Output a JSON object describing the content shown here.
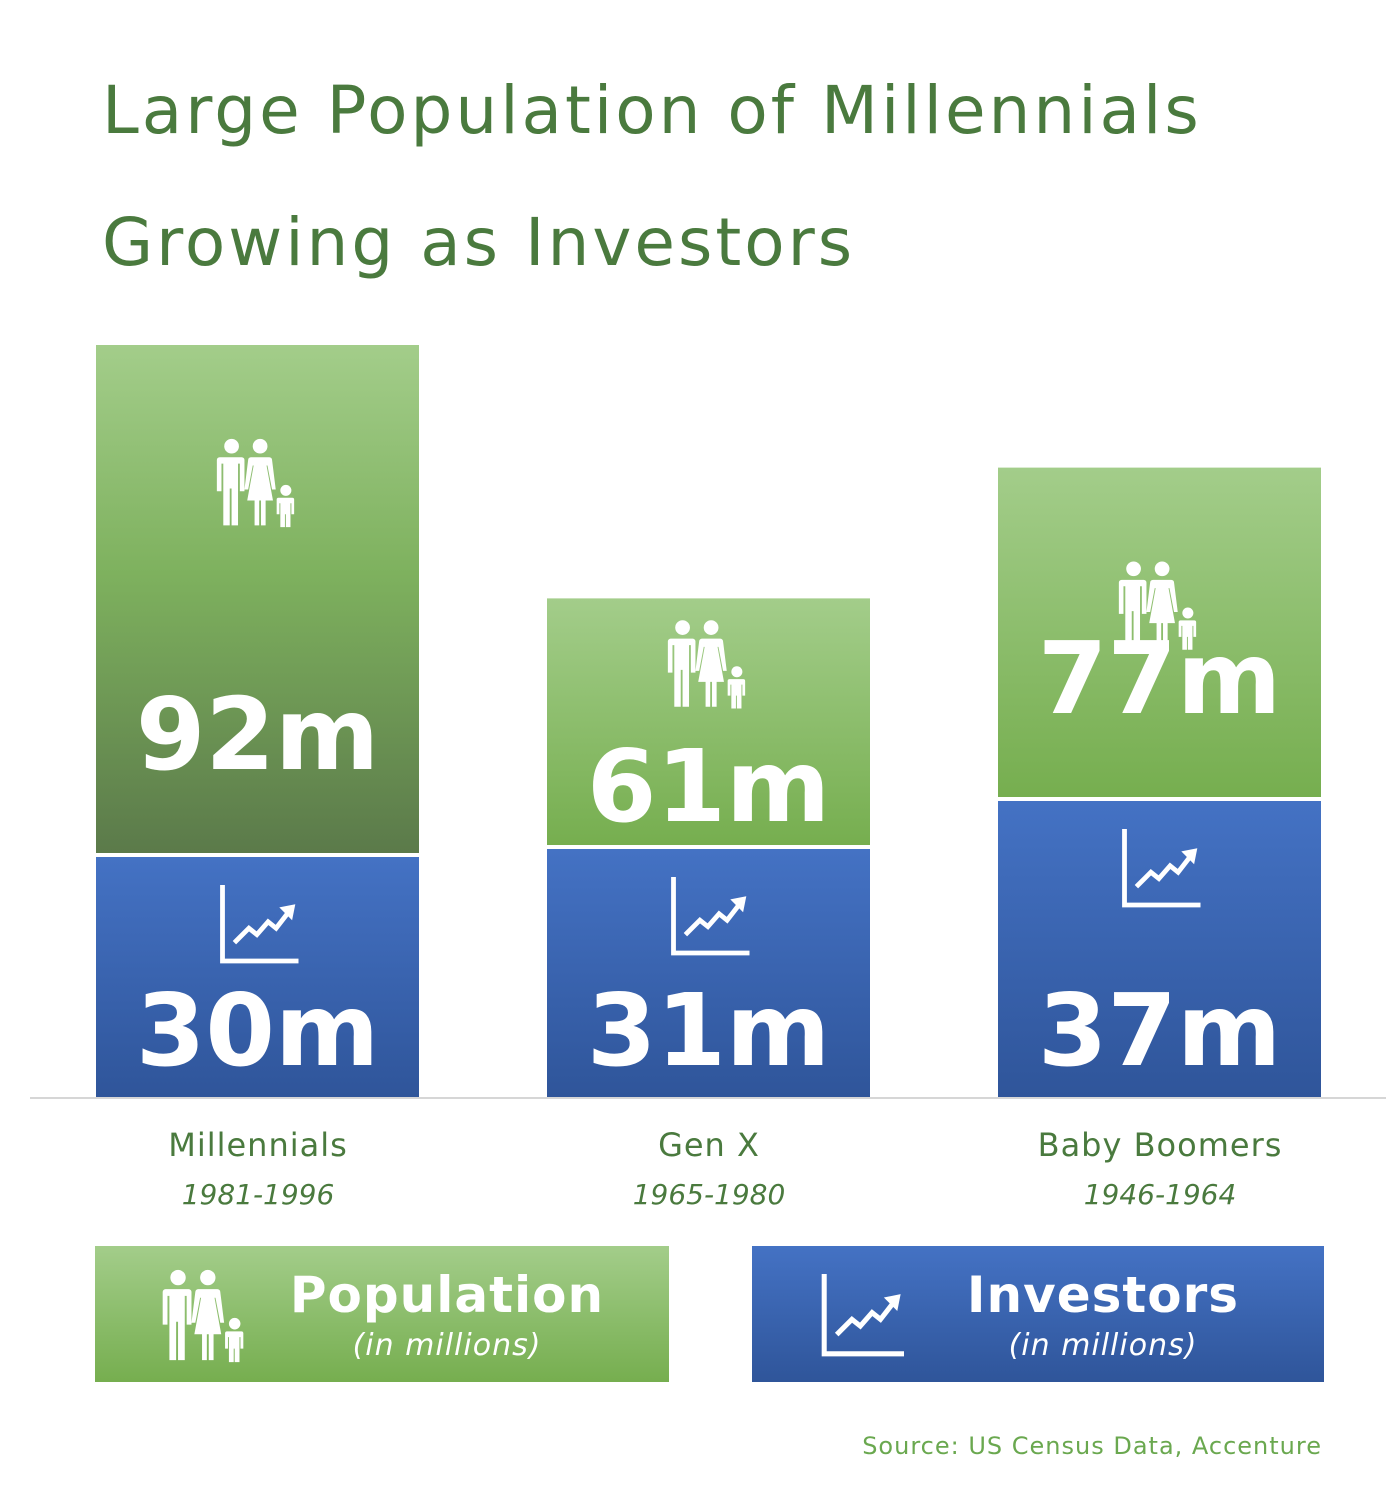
{
  "title_line1": "Large Population of Millennials",
  "title_line2": "Growing as Investors",
  "chart_data": {
    "type": "bar",
    "stacked": true,
    "categories": [
      "Millennials",
      "Gen X",
      "Baby Boomers"
    ],
    "category_years": [
      "1981-1996",
      "1965-1980",
      "1946-1964"
    ],
    "series": [
      {
        "name": "Investors",
        "values": [
          30,
          31,
          37
        ],
        "labels": [
          "30m",
          "31m",
          "37m"
        ],
        "color": "#4472c4"
      },
      {
        "name": "Population",
        "values": [
          92,
          61,
          77
        ],
        "labels": [
          "92m",
          "61m",
          "77m"
        ],
        "color": "#76ae4f"
      }
    ],
    "unit": "in millions",
    "grid": false
  },
  "legend": {
    "population": {
      "label": "Population",
      "sub": "(in millions)",
      "icon": "family-icon"
    },
    "investors": {
      "label": "Investors",
      "sub": "(in millions)",
      "icon": "growth-chart-icon"
    }
  },
  "source": "Source: US Census Data, Accenture",
  "colors": {
    "title": "#4a7a3e",
    "population_light": "#a3cd8a",
    "population_mid": "#76ae4f",
    "population_dark": "#5b7a4a",
    "investors_light": "#4472c4",
    "investors_dark": "#2f559a",
    "source": "#6aa84f"
  }
}
